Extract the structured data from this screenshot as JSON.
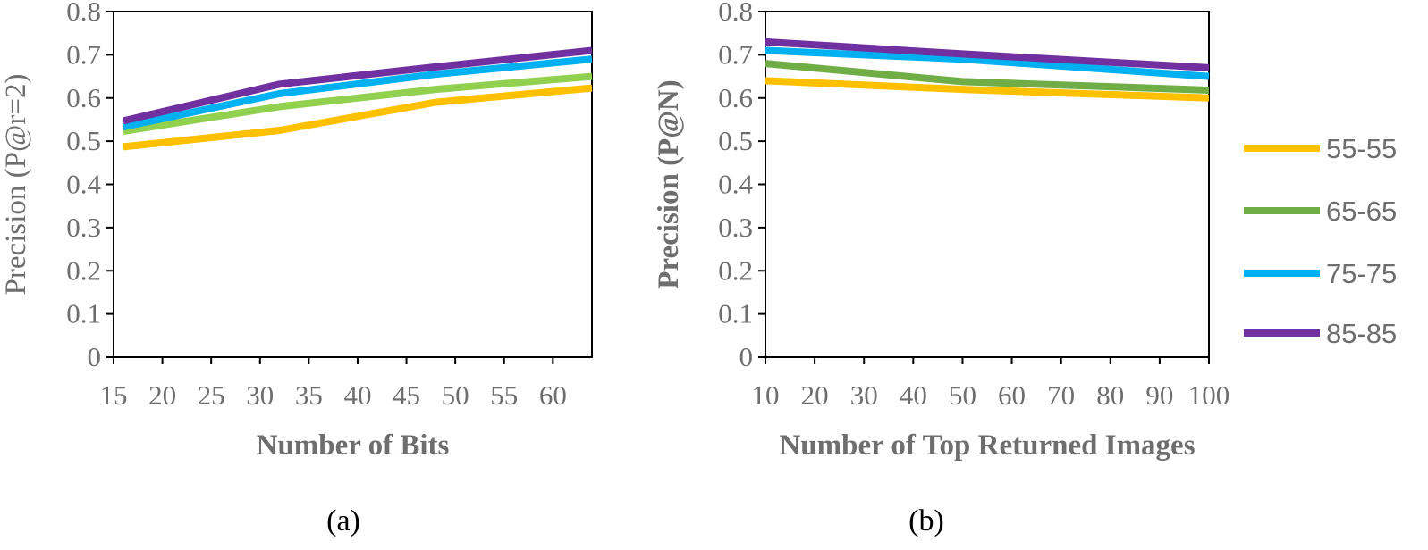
{
  "legend": {
    "entries": [
      {
        "label": "55-55",
        "color": "#FFC000"
      },
      {
        "label": "65-65",
        "color": "#70AD47"
      },
      {
        "label": "75-75",
        "color": "#00B0F0"
      },
      {
        "label": "85-85",
        "color": "#7030A0"
      }
    ]
  },
  "chart_data": [
    {
      "type": "line",
      "caption": "(a)",
      "xlabel": "Number  of Bits",
      "ylabel": "Precision (P@r=2)",
      "xlim": [
        15,
        64
      ],
      "ylim": [
        0,
        0.8
      ],
      "x_ticks": [
        15,
        20,
        25,
        30,
        35,
        40,
        45,
        50,
        55,
        60
      ],
      "y_ticks": [
        0,
        0.1,
        0.2,
        0.3,
        0.4,
        0.5,
        0.6,
        0.7,
        0.8
      ],
      "y_tick_labels": [
        "0",
        "0.1",
        "0.2",
        "0.3",
        "0.4",
        "0.5",
        "0.6",
        "0.7",
        "0.8"
      ],
      "x": [
        16,
        32,
        48,
        64
      ],
      "series": [
        {
          "legend": "55-55",
          "color": "#FFC000",
          "values": [
            0.487,
            0.525,
            0.59,
            0.623
          ]
        },
        {
          "legend": "65-65",
          "color": "#92D050",
          "values": [
            0.523,
            0.58,
            0.62,
            0.65
          ]
        },
        {
          "legend": "75-75",
          "color": "#00B0F0",
          "values": [
            0.533,
            0.61,
            0.655,
            0.69
          ]
        },
        {
          "legend": "85-85",
          "color": "#7030A0",
          "values": [
            0.547,
            0.632,
            0.672,
            0.71
          ]
        }
      ]
    },
    {
      "type": "line",
      "caption": "(b)",
      "xlabel": "Number  of Top  Returned  Images",
      "ylabel": "Precision (P@N)",
      "xlim": [
        10,
        100
      ],
      "ylim": [
        0,
        0.8
      ],
      "x_ticks": [
        10,
        20,
        30,
        40,
        50,
        60,
        70,
        80,
        90,
        100
      ],
      "y_ticks": [
        0,
        0.1,
        0.2,
        0.3,
        0.4,
        0.5,
        0.6,
        0.7,
        0.8
      ],
      "y_tick_labels": [
        "0",
        "0.1",
        "0.2",
        "0.3",
        "0.4",
        "0.5",
        "0.6",
        "0.7",
        "0.8"
      ],
      "x": [
        10,
        50,
        100
      ],
      "series": [
        {
          "legend": "55-55",
          "color": "#FFC000",
          "values": [
            0.64,
            0.62,
            0.6
          ]
        },
        {
          "legend": "65-65",
          "color": "#70AD47",
          "values": [
            0.68,
            0.638,
            0.618
          ]
        },
        {
          "legend": "75-75",
          "color": "#00B0F0",
          "values": [
            0.71,
            0.69,
            0.65
          ]
        },
        {
          "legend": "85-85",
          "color": "#7030A0",
          "values": [
            0.73,
            0.702,
            0.67
          ]
        }
      ]
    }
  ]
}
